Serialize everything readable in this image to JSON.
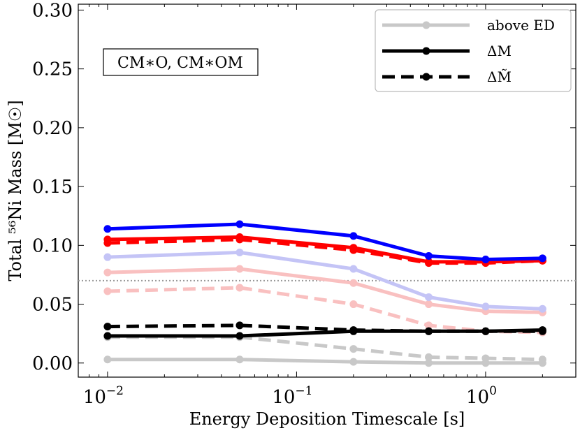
{
  "chart_data": {
    "type": "line",
    "xscale": "log",
    "xlabel": "Energy Deposition Timescale [s]",
    "ylabel": "Total ⁵⁶Ni Mass [M☉]",
    "xlim": [
      0.007,
      3.0
    ],
    "ylim": [
      -0.012,
      0.305
    ],
    "x": [
      0.01,
      0.05,
      0.2,
      0.5,
      1.0,
      2.0
    ],
    "x_ticks": [
      {
        "value": 0.01,
        "label": "10",
        "exp": "−2"
      },
      {
        "value": 0.1,
        "label": "10",
        "exp": "−1"
      },
      {
        "value": 1.0,
        "label": "10",
        "exp": "0"
      }
    ],
    "y_ticks": [
      {
        "value": 0.0,
        "label": "0.00"
      },
      {
        "value": 0.05,
        "label": "0.05"
      },
      {
        "value": 0.1,
        "label": "0.10"
      },
      {
        "value": 0.15,
        "label": "0.15"
      },
      {
        "value": 0.2,
        "label": "0.20"
      },
      {
        "value": 0.25,
        "label": "0.25"
      },
      {
        "value": 0.3,
        "label": "0.30"
      }
    ],
    "reference_line": {
      "y": 0.07,
      "style": "dotted",
      "color": "#999999"
    },
    "annotation": "CM∗O, CM∗OM",
    "legend": [
      {
        "label": "above ED",
        "color": "#c8c8c8",
        "dash": "solid"
      },
      {
        "label": "ΔM",
        "color": "#000000",
        "dash": "solid"
      },
      {
        "label": "ΔM̃",
        "color": "#000000",
        "dash": "dashed"
      }
    ],
    "series": [
      {
        "name": "gray-solid",
        "color": "#c8c8c8",
        "dash": "solid",
        "values": [
          0.003,
          0.003,
          0.001,
          0.0,
          0.0,
          0.0
        ]
      },
      {
        "name": "gray-dashed",
        "color": "#c8c8c8",
        "dash": "dashed",
        "values": [
          0.022,
          0.022,
          0.012,
          0.005,
          0.004,
          0.003
        ]
      },
      {
        "name": "lightred-solid",
        "color": "#f9c0c0",
        "dash": "solid",
        "values": [
          0.077,
          0.08,
          0.068,
          0.05,
          0.044,
          0.043
        ]
      },
      {
        "name": "lightred-dashed",
        "color": "#f9c0c0",
        "dash": "dashed",
        "values": [
          0.061,
          0.064,
          0.05,
          0.032,
          0.027,
          0.026
        ]
      },
      {
        "name": "lightblue-solid",
        "color": "#c4c4f6",
        "dash": "solid",
        "values": [
          0.09,
          0.094,
          0.08,
          0.056,
          0.048,
          0.046
        ]
      },
      {
        "name": "black-dashed",
        "color": "#000000",
        "dash": "dashed",
        "values": [
          0.031,
          0.032,
          0.028,
          0.027,
          0.027,
          0.027
        ]
      },
      {
        "name": "black-solid",
        "color": "#000000",
        "dash": "solid",
        "values": [
          0.023,
          0.023,
          0.027,
          0.027,
          0.027,
          0.028
        ]
      },
      {
        "name": "red-dashed",
        "color": "#ff0000",
        "dash": "dashed",
        "values": [
          0.102,
          0.105,
          0.096,
          0.085,
          0.085,
          0.087
        ]
      },
      {
        "name": "red-solid",
        "color": "#ff0000",
        "dash": "solid",
        "values": [
          0.105,
          0.107,
          0.098,
          0.086,
          0.086,
          0.087
        ]
      },
      {
        "name": "blue-solid",
        "color": "#0000ff",
        "dash": "solid",
        "values": [
          0.114,
          0.118,
          0.108,
          0.091,
          0.088,
          0.089
        ]
      }
    ]
  }
}
